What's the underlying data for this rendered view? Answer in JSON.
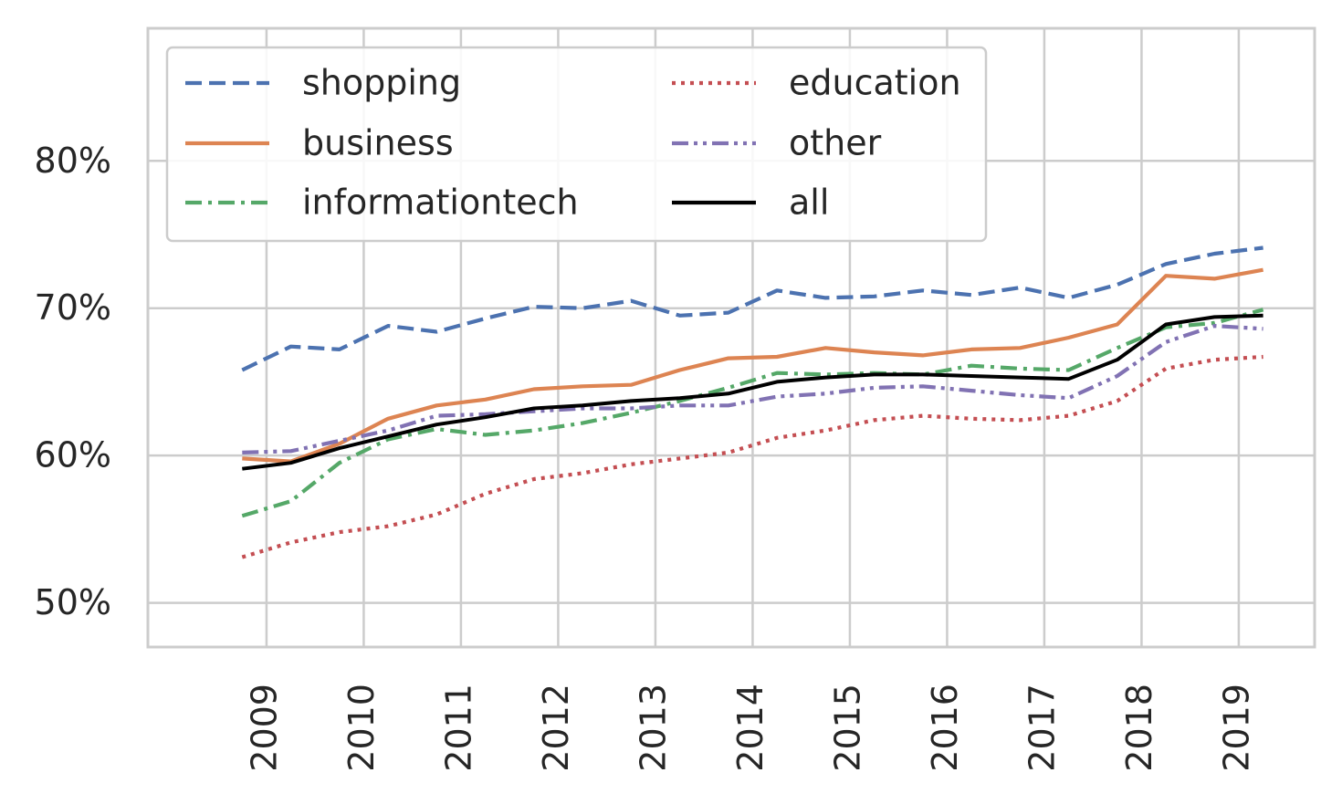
{
  "chart_data": {
    "type": "line",
    "title": "",
    "xlabel": "",
    "ylabel": "",
    "x": [
      2008.75,
      2009.25,
      2009.75,
      2010.25,
      2010.75,
      2011.25,
      2011.75,
      2012.25,
      2012.75,
      2013.25,
      2013.75,
      2014.25,
      2014.75,
      2015.25,
      2015.75,
      2016.25,
      2016.75,
      2017.25,
      2017.75,
      2018.25,
      2018.75,
      2019.25
    ],
    "xlim": [
      2007.78,
      2019.78
    ],
    "ylim": [
      0.47,
      0.89
    ],
    "x_ticks": [
      2009,
      2010,
      2011,
      2012,
      2013,
      2014,
      2015,
      2016,
      2017,
      2018,
      2019
    ],
    "x_tick_labels": [
      "2009",
      "2010",
      "2011",
      "2012",
      "2013",
      "2014",
      "2015",
      "2016",
      "2017",
      "2018",
      "2019"
    ],
    "y_ticks": [
      0.5,
      0.6,
      0.7,
      0.8
    ],
    "y_tick_labels": [
      "50%",
      "60%",
      "70%",
      "80%"
    ],
    "grid": true,
    "legend_position": "top-left",
    "legend_columns": 2,
    "series": [
      {
        "name": "shopping",
        "color": "#4c72b0",
        "style": "dashed",
        "values": [
          0.658,
          0.674,
          0.672,
          0.688,
          0.684,
          0.693,
          0.701,
          0.7,
          0.705,
          0.695,
          0.697,
          0.712,
          0.707,
          0.708,
          0.712,
          0.709,
          0.714,
          0.707,
          0.716,
          0.73,
          0.737,
          0.741
        ]
      },
      {
        "name": "business",
        "color": "#dd8452",
        "style": "solid",
        "values": [
          0.598,
          0.596,
          0.608,
          0.625,
          0.634,
          0.638,
          0.645,
          0.647,
          0.648,
          0.658,
          0.666,
          0.667,
          0.673,
          0.67,
          0.668,
          0.672,
          0.673,
          0.68,
          0.689,
          0.722,
          0.72,
          0.726
        ]
      },
      {
        "name": "informationtech",
        "color": "#55a868",
        "style": "dashdot",
        "values": [
          0.559,
          0.569,
          0.595,
          0.611,
          0.618,
          0.614,
          0.617,
          0.622,
          0.629,
          0.637,
          0.646,
          0.656,
          0.655,
          0.656,
          0.655,
          0.661,
          0.659,
          0.658,
          0.673,
          0.687,
          0.69,
          0.699
        ]
      },
      {
        "name": "education",
        "color": "#c44e52",
        "style": "dotted",
        "values": [
          0.531,
          0.541,
          0.548,
          0.552,
          0.56,
          0.574,
          0.584,
          0.588,
          0.594,
          0.598,
          0.602,
          0.612,
          0.617,
          0.624,
          0.627,
          0.625,
          0.624,
          0.627,
          0.637,
          0.659,
          0.665,
          0.667
        ]
      },
      {
        "name": "other",
        "color": "#8172b3",
        "style": "dashdotdot",
        "values": [
          0.602,
          0.603,
          0.61,
          0.617,
          0.627,
          0.628,
          0.63,
          0.632,
          0.632,
          0.634,
          0.634,
          0.64,
          0.642,
          0.646,
          0.647,
          0.644,
          0.641,
          0.639,
          0.654,
          0.677,
          0.688,
          0.686
        ]
      },
      {
        "name": "all",
        "color": "#000000",
        "style": "solid",
        "values": [
          0.591,
          0.595,
          0.605,
          0.613,
          0.621,
          0.626,
          0.632,
          0.634,
          0.637,
          0.639,
          0.642,
          0.65,
          0.653,
          0.655,
          0.655,
          0.654,
          0.653,
          0.652,
          0.665,
          0.689,
          0.694,
          0.695
        ]
      }
    ]
  }
}
